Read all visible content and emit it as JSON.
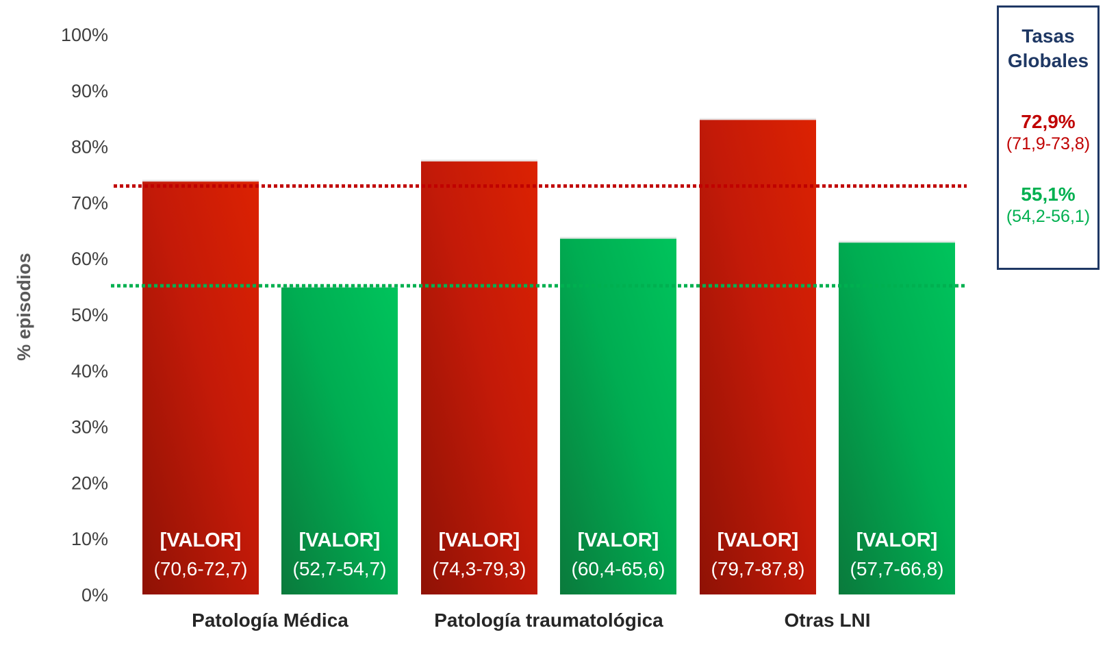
{
  "chart_data": {
    "type": "bar",
    "categories": [
      "Patología Médica",
      "Patología traumatológica",
      "Otras LNI"
    ],
    "series": [
      {
        "color": "#c8180a",
        "values": [
          73.8,
          77.4,
          84.8
        ],
        "value_labels": [
          "[VALOR]",
          "[VALOR]",
          "[VALOR]"
        ],
        "ci_labels": [
          "(70,6-72,7)",
          "(74,3-79,3)",
          "(79,7-87,8)"
        ]
      },
      {
        "color": "#00b050",
        "values": [
          54.9,
          63.6,
          62.9
        ],
        "value_labels": [
          "[VALOR]",
          "[VALOR]",
          "[VALOR]"
        ],
        "ci_labels": [
          "(52,7-54,7)",
          "(60,4-65,6)",
          "(57,7-66,8)"
        ]
      }
    ],
    "yticks": [
      "0%",
      "10%",
      "20%",
      "30%",
      "40%",
      "50%",
      "60%",
      "70%",
      "80%",
      "90%",
      "100%"
    ],
    "ylim": [
      0,
      100
    ],
    "ylabel": "% episodios",
    "xlabel": "",
    "grid": false,
    "reference_lines": [
      {
        "value": 72.9,
        "color": "#c00000",
        "style": "dotted"
      },
      {
        "value": 55.1,
        "color": "#00b050",
        "style": "dotted"
      }
    ]
  },
  "legend": {
    "title": "Tasas Globales",
    "title_color": "#1f3864",
    "items": [
      {
        "rate": "72,9%",
        "ci": "(71,9-73,8)",
        "color": "#c00000"
      },
      {
        "rate": "55,1%",
        "ci": "(54,2-56,1)",
        "color": "#00b050"
      }
    ]
  }
}
